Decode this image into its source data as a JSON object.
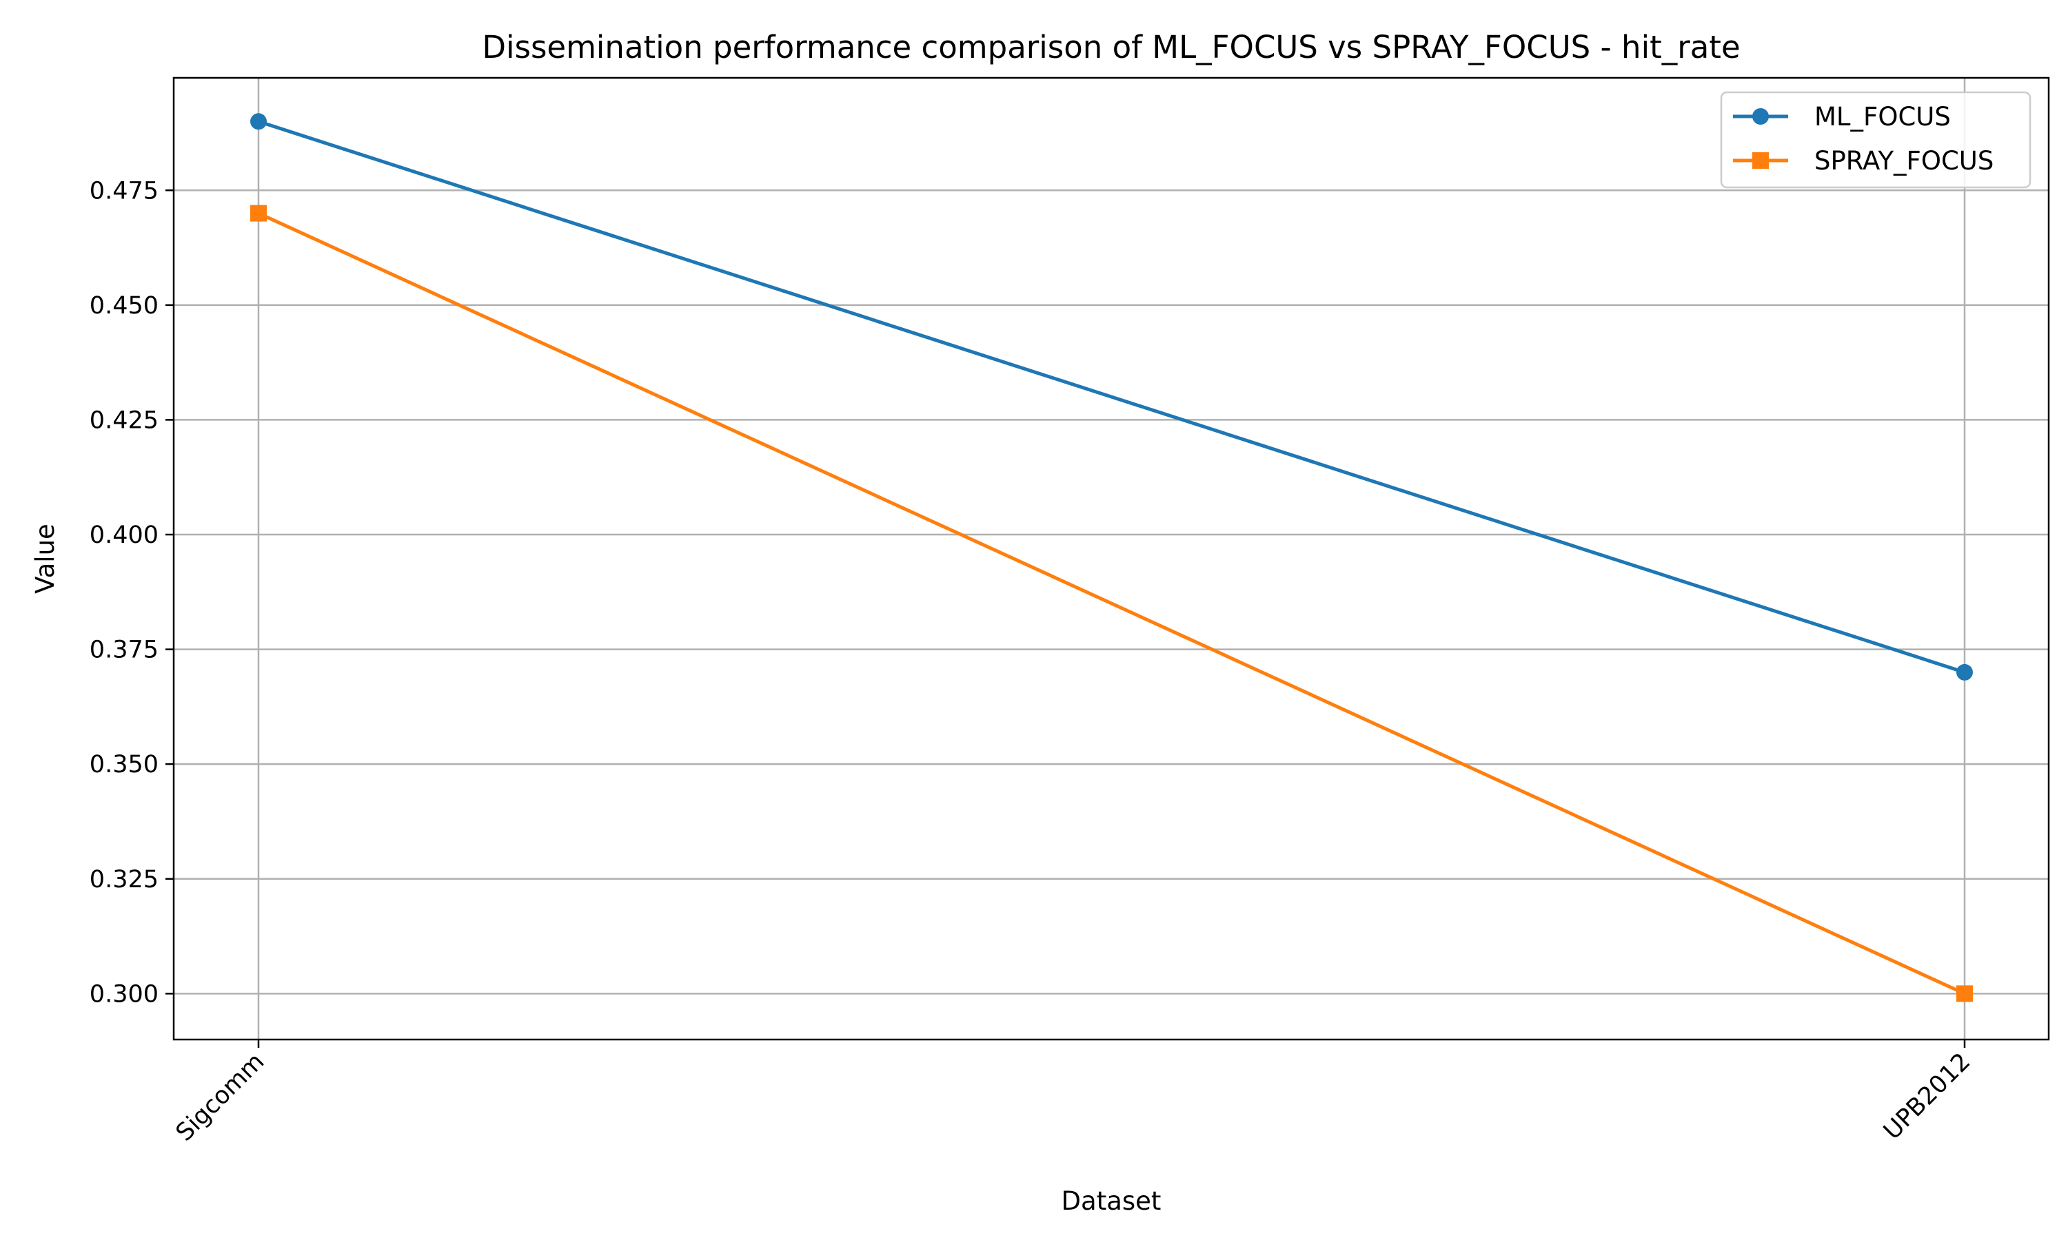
{
  "chart_data": {
    "type": "line",
    "title": "Dissemination performance comparison of ML_FOCUS vs SPRAY_FOCUS - hit_rate",
    "xlabel": "Dataset",
    "ylabel": "Value",
    "categories": [
      "Sigcomm",
      "UPB2012"
    ],
    "ylim": [
      0.29,
      0.4995
    ],
    "yticks": [
      "0.300",
      "0.325",
      "0.350",
      "0.375",
      "0.400",
      "0.425",
      "0.450",
      "0.475"
    ],
    "grid": true,
    "legend_position": "top-right",
    "series": [
      {
        "name": "ML_FOCUS",
        "values": [
          0.49,
          0.37
        ],
        "color": "#1f77b4",
        "marker": "circle"
      },
      {
        "name": "SPRAY_FOCUS",
        "values": [
          0.47,
          0.3
        ],
        "color": "#ff7f0e",
        "marker": "square"
      }
    ]
  }
}
